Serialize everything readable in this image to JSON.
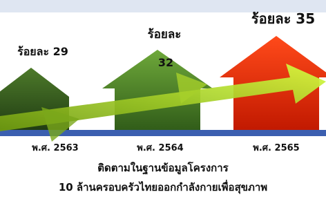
{
  "items": [
    {
      "label": [
        "ร้อยละ 29"
      ],
      "year": "พ.ศ. 2563"
    },
    {
      "label": [
        "ร้อยละ",
        "32"
      ],
      "year": "พ.ศ. 2564"
    },
    {
      "label": [
        "ร้อยละ 35"
      ],
      "year": "พ.ศ. 2565"
    }
  ],
  "caption": [
    "ติดตามในฐานข้อมูลโครงการ",
    "10 ล้านครอบครัวไทยออกกำลังกายเพื่อสุขภาพ"
  ]
}
